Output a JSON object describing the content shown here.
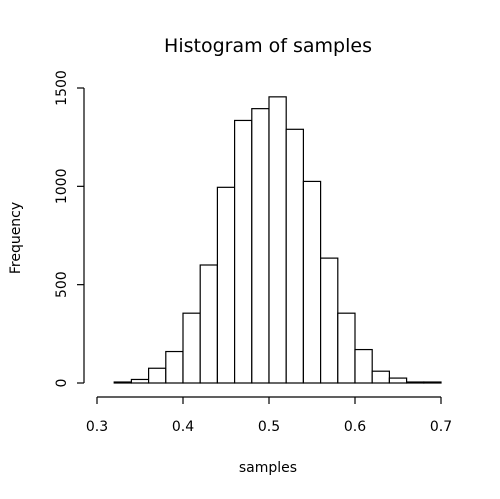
{
  "chart_data": {
    "type": "bar",
    "title": "Histogram of samples",
    "xlabel": "samples",
    "ylabel": "Frequency",
    "xlim": [
      0.3,
      0.7
    ],
    "ylim": [
      0,
      1500
    ],
    "bin_width": 0.02,
    "x_ticks": [
      {
        "value": 0.3,
        "label": "0.3"
      },
      {
        "value": 0.4,
        "label": "0.4"
      },
      {
        "value": 0.5,
        "label": "0.5"
      },
      {
        "value": 0.6,
        "label": "0.6"
      },
      {
        "value": 0.7,
        "label": "0.7"
      }
    ],
    "y_ticks": [
      {
        "value": 0,
        "label": "0"
      },
      {
        "value": 500,
        "label": "500"
      },
      {
        "value": 1000,
        "label": "1000"
      },
      {
        "value": 1500,
        "label": "1500"
      }
    ],
    "bins": [
      {
        "start": 0.3,
        "end": 0.32,
        "count": 0
      },
      {
        "start": 0.32,
        "end": 0.34,
        "count": 5
      },
      {
        "start": 0.34,
        "end": 0.36,
        "count": 18
      },
      {
        "start": 0.36,
        "end": 0.38,
        "count": 75
      },
      {
        "start": 0.38,
        "end": 0.4,
        "count": 160
      },
      {
        "start": 0.4,
        "end": 0.42,
        "count": 355
      },
      {
        "start": 0.42,
        "end": 0.44,
        "count": 600
      },
      {
        "start": 0.44,
        "end": 0.46,
        "count": 995
      },
      {
        "start": 0.46,
        "end": 0.48,
        "count": 1335
      },
      {
        "start": 0.48,
        "end": 0.5,
        "count": 1395
      },
      {
        "start": 0.5,
        "end": 0.52,
        "count": 1455
      },
      {
        "start": 0.52,
        "end": 0.54,
        "count": 1290
      },
      {
        "start": 0.54,
        "end": 0.56,
        "count": 1025
      },
      {
        "start": 0.56,
        "end": 0.58,
        "count": 635
      },
      {
        "start": 0.58,
        "end": 0.6,
        "count": 355
      },
      {
        "start": 0.6,
        "end": 0.62,
        "count": 170
      },
      {
        "start": 0.62,
        "end": 0.64,
        "count": 60
      },
      {
        "start": 0.64,
        "end": 0.66,
        "count": 25
      },
      {
        "start": 0.66,
        "end": 0.68,
        "count": 5
      },
      {
        "start": 0.68,
        "end": 0.7,
        "count": 5
      }
    ],
    "bar_fill": "#ffffff",
    "bar_stroke": "#000000",
    "grid": false,
    "legend": "none"
  }
}
